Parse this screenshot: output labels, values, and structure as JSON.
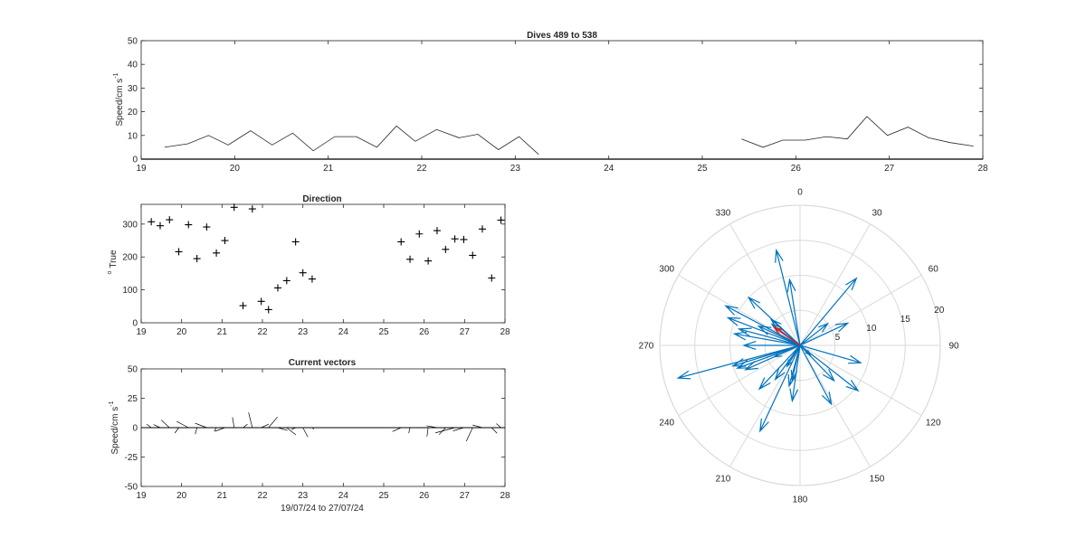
{
  "chart_data": [
    {
      "id": "speed",
      "type": "line",
      "title": "Dives 489 to 538",
      "xlabel": "",
      "ylabel": "Speed/cm s",
      "ylabel_sup": "-1",
      "xlim": [
        19,
        28
      ],
      "ylim": [
        0,
        50
      ],
      "xticks": [
        19,
        20,
        21,
        22,
        23,
        24,
        25,
        26,
        27,
        28
      ],
      "yticks": [
        0,
        10,
        20,
        30,
        40,
        50
      ],
      "grid": true,
      "color": "#262626",
      "series": [
        {
          "name": "",
          "points": [
            [
              19.25,
              5
            ],
            [
              19.5,
              6.5
            ],
            [
              19.72,
              10
            ],
            [
              19.93,
              6
            ],
            [
              20.17,
              12
            ],
            [
              20.4,
              6
            ],
            [
              20.62,
              11
            ],
            [
              20.84,
              3.5
            ],
            [
              21.07,
              9.5
            ],
            [
              21.3,
              9.5
            ],
            [
              21.52,
              5
            ],
            [
              21.73,
              14
            ],
            [
              21.93,
              7.5
            ],
            [
              22.16,
              12.5
            ],
            [
              22.4,
              9
            ],
            [
              22.6,
              10.5
            ],
            [
              22.82,
              4
            ],
            [
              23.04,
              9.5
            ],
            [
              23.25,
              2
            ]
          ]
        },
        {
          "name": "",
          "points": [
            [
              25.42,
              8.5
            ],
            [
              25.65,
              5
            ],
            [
              25.86,
              8
            ],
            [
              26.1,
              8
            ],
            [
              26.33,
              9.5
            ],
            [
              26.55,
              8.5
            ],
            [
              26.76,
              18
            ],
            [
              26.98,
              10
            ],
            [
              27.2,
              13.5
            ],
            [
              27.42,
              9
            ],
            [
              27.65,
              7
            ],
            [
              27.9,
              5.5
            ]
          ]
        }
      ]
    },
    {
      "id": "direction",
      "type": "scatter",
      "title": "Direction",
      "xlabel": "",
      "ylabel": "True",
      "ylabel_sup": "o",
      "xlim": [
        19,
        28
      ],
      "ylim": [
        0,
        360
      ],
      "xticks": [
        19,
        20,
        21,
        22,
        23,
        24,
        25,
        26,
        27,
        28
      ],
      "yticks": [
        0,
        100,
        200,
        300
      ],
      "grid": true,
      "marker": "+",
      "color": "#000000",
      "points": [
        [
          19.25,
          307
        ],
        [
          19.47,
          295
        ],
        [
          19.7,
          313
        ],
        [
          19.93,
          216
        ],
        [
          20.17,
          298
        ],
        [
          20.38,
          195
        ],
        [
          20.62,
          291
        ],
        [
          20.86,
          212
        ],
        [
          21.07,
          250
        ],
        [
          21.3,
          351
        ],
        [
          21.52,
          52
        ],
        [
          21.75,
          346
        ],
        [
          21.97,
          65
        ],
        [
          22.15,
          40
        ],
        [
          22.38,
          106
        ],
        [
          22.6,
          128
        ],
        [
          22.82,
          246
        ],
        [
          23.0,
          152
        ],
        [
          23.23,
          133
        ],
        [
          25.43,
          246
        ],
        [
          25.65,
          193
        ],
        [
          25.88,
          270
        ],
        [
          26.1,
          188
        ],
        [
          26.32,
          280
        ],
        [
          26.53,
          223
        ],
        [
          26.76,
          255
        ],
        [
          26.98,
          253
        ],
        [
          27.2,
          205
        ],
        [
          27.44,
          285
        ],
        [
          27.67,
          136
        ],
        [
          27.9,
          312
        ]
      ]
    },
    {
      "id": "vectors",
      "type": "line",
      "title": "Current vectors",
      "xlabel": "19/07/24 to 27/07/24",
      "ylabel": "Speed/cm s",
      "ylabel_sup": "-1",
      "xlim": [
        19,
        28
      ],
      "ylim": [
        -50,
        50
      ],
      "xticks": [
        19,
        20,
        21,
        22,
        23,
        24,
        25,
        26,
        27,
        28
      ],
      "yticks": [
        -50,
        -25,
        0,
        25,
        50
      ],
      "grid": true,
      "color": "#000000",
      "baseline": [
        [
          19,
          0
        ],
        [
          23.25,
          0
        ],
        [
          25.42,
          0
        ],
        [
          28,
          0
        ]
      ]
    },
    {
      "id": "polar",
      "type": "polar",
      "title": "",
      "theta_ticks": [
        0,
        30,
        60,
        90,
        120,
        150,
        180,
        210,
        240,
        270,
        300,
        330
      ],
      "r_ticks": [
        5,
        10,
        15,
        20
      ],
      "rmax": 20,
      "direction": "clockwise",
      "zero": "top",
      "arrow_color": "#0072bd",
      "mean_color": "#d92020",
      "mean_vector": {
        "speed": 4.5,
        "direction": 305
      }
    }
  ]
}
